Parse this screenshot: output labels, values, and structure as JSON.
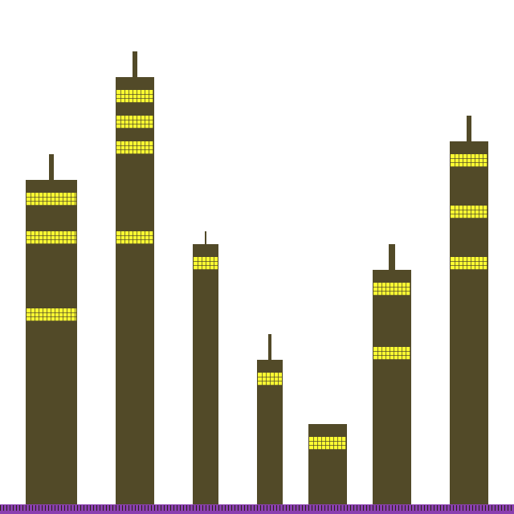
{
  "colors": {
    "sky": "#ffffff",
    "building": "#524a28",
    "window_lit": "#ffff33",
    "window_grid": "#524a28",
    "ground": "#8a3fb0",
    "ground_tick": "#2a2216"
  },
  "scene": {
    "building_count": 7,
    "buildings": [
      {
        "id": "building-1",
        "floors_lit": 3,
        "has_antenna": true
      },
      {
        "id": "building-2",
        "floors_lit": 4,
        "has_antenna": true
      },
      {
        "id": "building-3",
        "floors_lit": 1,
        "has_antenna": true
      },
      {
        "id": "building-4",
        "floors_lit": 1,
        "has_antenna": true
      },
      {
        "id": "building-5",
        "floors_lit": 1,
        "has_antenna": false
      },
      {
        "id": "building-6",
        "floors_lit": 2,
        "has_antenna": true
      },
      {
        "id": "building-7",
        "floors_lit": 3,
        "has_antenna": true
      }
    ]
  }
}
